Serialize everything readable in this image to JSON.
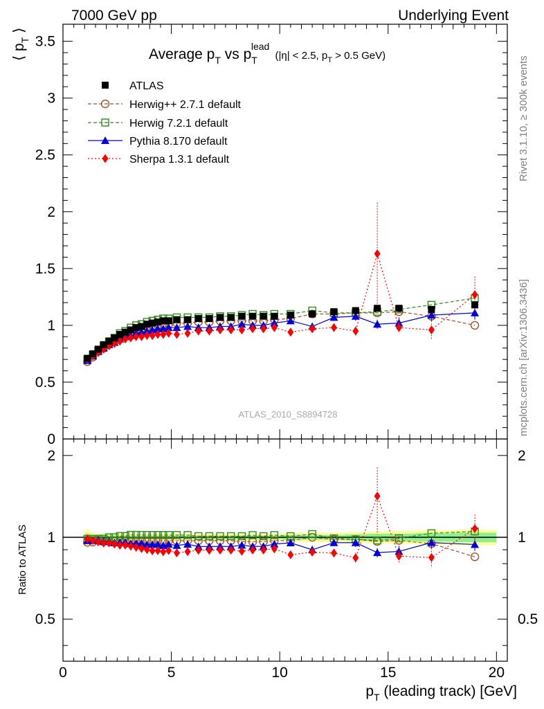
{
  "header": {
    "left": "7000 GeV pp",
    "right": "Underlying Event"
  },
  "side_labels": {
    "rivet": "Rivet 3.1.10, ≥ 300k events",
    "mcplots": "mcplots.cern.ch [arXiv:1306.3436]"
  },
  "watermark": "ATLAS_2010_S8894728",
  "chart_data": {
    "type": "scatter",
    "title_parts": {
      "main_a": "Average p",
      "sub_a": "T",
      "main_b": " vs p",
      "sub_b": "T",
      "sup_b": "lead",
      "cuts_a": " (|η| < 2.5, p",
      "cuts_sub": "T",
      "cuts_b": " > 0.5 GeV)"
    },
    "xlabel": "p",
    "xlabel_sub": "T",
    "xlabel_rest": " (leading track) [GeV]",
    "ylabel_top": "⟨ p",
    "ylabel_top_sub": "T",
    "ylabel_top_end": " ⟩",
    "ylabel_bottom": "Ratio to ATLAS",
    "xlim": [
      0,
      20.5
    ],
    "ylim_top": [
      0,
      3.65
    ],
    "ylim_bottom": [
      0.35,
      2.3
    ],
    "x_ticks": [
      "0",
      "5",
      "10",
      "15",
      "20"
    ],
    "y_ticks_top": [
      "0",
      "0.5",
      "1",
      "1.5",
      "2",
      "2.5",
      "3",
      "3.5"
    ],
    "y_ticks_bottom": [
      "0.5",
      "1",
      "2"
    ],
    "x": [
      1.125,
      1.375,
      1.625,
      1.875,
      2.125,
      2.375,
      2.625,
      2.875,
      3.125,
      3.375,
      3.625,
      3.875,
      4.125,
      4.375,
      4.625,
      4.875,
      5.25,
      5.75,
      6.25,
      6.75,
      7.25,
      7.75,
      8.25,
      8.75,
      9.25,
      9.75,
      10.5,
      11.5,
      12.5,
      13.5,
      14.5,
      15.5,
      17.0,
      19.0
    ],
    "series": [
      {
        "name": "ATLAS",
        "color": "#000000",
        "marker": "filled-square",
        "line": "none",
        "values": [
          0.71,
          0.75,
          0.79,
          0.83,
          0.86,
          0.89,
          0.92,
          0.94,
          0.96,
          0.98,
          0.99,
          1.01,
          1.02,
          1.03,
          1.04,
          1.04,
          1.05,
          1.05,
          1.06,
          1.06,
          1.07,
          1.07,
          1.08,
          1.08,
          1.08,
          1.08,
          1.09,
          1.1,
          1.12,
          1.13,
          1.15,
          1.15,
          1.14,
          1.18
        ]
      },
      {
        "name": "Herwig++ 2.7.1 default",
        "color": "#a0522d",
        "marker": "open-circle",
        "line": "dashed",
        "values": [
          0.68,
          0.72,
          0.77,
          0.8,
          0.83,
          0.86,
          0.89,
          0.91,
          0.93,
          0.95,
          0.96,
          0.98,
          0.99,
          1.0,
          1.01,
          1.01,
          1.02,
          1.02,
          1.03,
          1.03,
          1.04,
          1.04,
          1.04,
          1.04,
          1.04,
          1.05,
          1.06,
          1.1,
          1.1,
          1.11,
          1.11,
          1.12,
          1.08,
          1.0
        ]
      },
      {
        "name": "Herwig 7.2.1 default",
        "color": "#2e8b1a",
        "marker": "open-square",
        "line": "dashed",
        "values": [
          0.7,
          0.74,
          0.78,
          0.82,
          0.86,
          0.89,
          0.93,
          0.95,
          0.98,
          1.0,
          1.01,
          1.03,
          1.04,
          1.05,
          1.06,
          1.06,
          1.07,
          1.07,
          1.07,
          1.07,
          1.08,
          1.08,
          1.09,
          1.1,
          1.09,
          1.1,
          1.1,
          1.13,
          1.11,
          1.11,
          1.12,
          1.14,
          1.18,
          1.24
        ]
      },
      {
        "name": "Pythia 8.170 default",
        "color": "#0000dd",
        "marker": "filled-triangle",
        "line": "solid",
        "values": [
          0.69,
          0.73,
          0.77,
          0.8,
          0.83,
          0.85,
          0.88,
          0.9,
          0.91,
          0.93,
          0.94,
          0.95,
          0.96,
          0.97,
          0.97,
          0.98,
          0.98,
          0.99,
          0.98,
          0.98,
          0.99,
          0.99,
          1.01,
          1.0,
          1.0,
          1.02,
          1.04,
          0.99,
          1.07,
          1.08,
          1.01,
          1.02,
          1.09,
          1.11
        ]
      },
      {
        "name": "Sherpa 1.3.1 default",
        "color": "#ff0000",
        "marker": "filled-diamond",
        "line": "dotted",
        "values": [
          0.7,
          0.73,
          0.76,
          0.79,
          0.82,
          0.84,
          0.86,
          0.88,
          0.89,
          0.9,
          0.9,
          0.91,
          0.91,
          0.92,
          0.92,
          0.93,
          0.92,
          0.93,
          0.95,
          0.95,
          0.96,
          0.96,
          0.96,
          0.97,
          0.97,
          0.98,
          0.94,
          0.97,
          0.98,
          0.95,
          1.63,
          0.98,
          0.96,
          1.27
        ]
      }
    ],
    "errors": {
      "Sherpa 1.3.1 default": [
        0.01,
        0.01,
        0.01,
        0.01,
        0.01,
        0.01,
        0.01,
        0.01,
        0.01,
        0.01,
        0.01,
        0.01,
        0.01,
        0.01,
        0.01,
        0.01,
        0.01,
        0.01,
        0.01,
        0.01,
        0.01,
        0.01,
        0.01,
        0.01,
        0.01,
        0.02,
        0.02,
        0.03,
        0.03,
        0.04,
        0.45,
        0.05,
        0.08,
        0.16
      ],
      "Pythia 8.170 default": [
        0.01,
        0.01,
        0.01,
        0.01,
        0.01,
        0.01,
        0.01,
        0.01,
        0.01,
        0.01,
        0.01,
        0.01,
        0.01,
        0.01,
        0.01,
        0.01,
        0.01,
        0.01,
        0.01,
        0.01,
        0.01,
        0.01,
        0.01,
        0.01,
        0.01,
        0.02,
        0.02,
        0.03,
        0.03,
        0.04,
        0.04,
        0.05,
        0.05,
        0.06
      ]
    },
    "atlas_band_rel": [
      0.07,
      0.04,
      0.03,
      0.03,
      0.03,
      0.03,
      0.03,
      0.03,
      0.03,
      0.03,
      0.03,
      0.03,
      0.03,
      0.03,
      0.03,
      0.03,
      0.03,
      0.03,
      0.03,
      0.03,
      0.03,
      0.03,
      0.03,
      0.03,
      0.03,
      0.03,
      0.035,
      0.04,
      0.04,
      0.045,
      0.05,
      0.055,
      0.06,
      0.065
    ],
    "atlas_band_rel_stat": [
      0.03,
      0.02,
      0.015,
      0.015,
      0.015,
      0.015,
      0.015,
      0.015,
      0.015,
      0.015,
      0.015,
      0.015,
      0.015,
      0.015,
      0.015,
      0.015,
      0.015,
      0.015,
      0.015,
      0.015,
      0.015,
      0.015,
      0.015,
      0.015,
      0.015,
      0.015,
      0.02,
      0.02,
      0.02,
      0.025,
      0.03,
      0.03,
      0.035,
      0.04
    ],
    "band_colors": {
      "syst": "#ffff99",
      "stat": "#90ee90"
    }
  }
}
